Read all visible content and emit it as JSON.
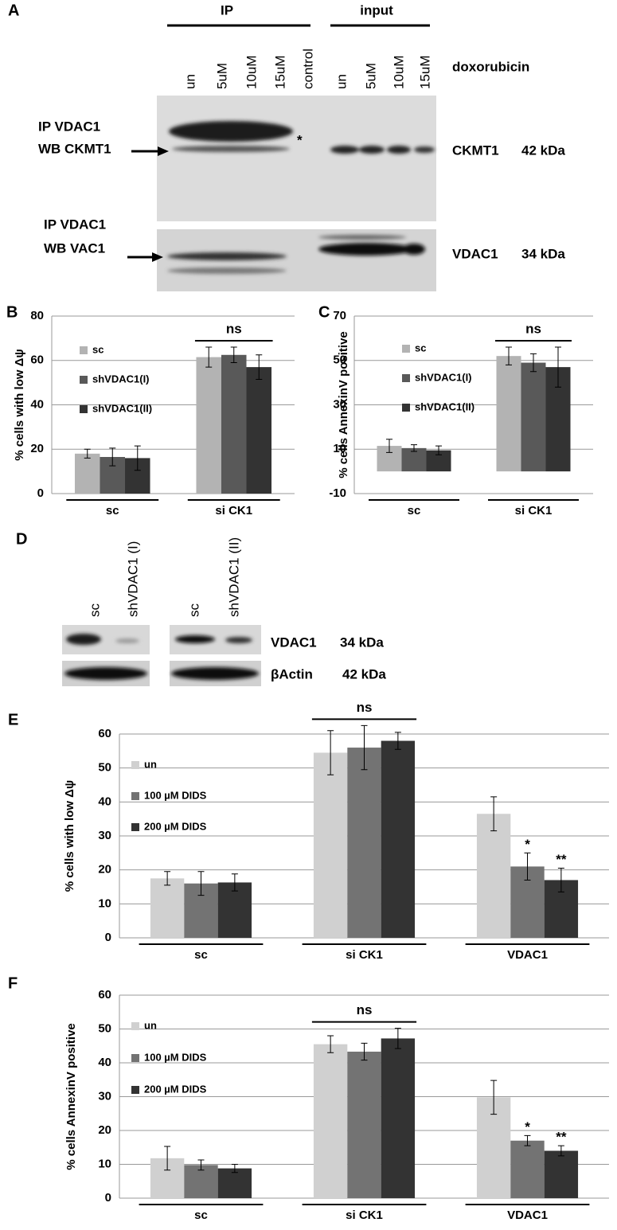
{
  "panel_labels": [
    "A",
    "B",
    "C",
    "D",
    "E",
    "F"
  ],
  "blot_a": {
    "groups": [
      "IP",
      "input"
    ],
    "lanes": [
      "un",
      "5uM",
      "10uM",
      "15uM",
      "control",
      "un",
      "5uM",
      "10uM",
      "15uM"
    ],
    "treatment": "doxorubicin",
    "upper_left": [
      "IP VDAC1",
      "WB CKMT1"
    ],
    "asterisk": "*",
    "upper_right": [
      "CKMT1",
      "42 kDa"
    ],
    "lower_left": [
      "IP VDAC1",
      "WB VAC1"
    ],
    "lower_right": [
      "VDAC1",
      "34 kDa"
    ]
  },
  "blot_d": {
    "lanes": [
      "sc",
      "shVDAC1 (I)",
      "sc",
      "shVDAC1 (II)"
    ],
    "rows": [
      [
        "VDAC1",
        "34 kDa"
      ],
      [
        "βActin",
        "42 kDa"
      ]
    ]
  },
  "chart_data": [
    {
      "type": "bar",
      "y_label": "% cells with low Δψ",
      "categories": [
        "sc",
        "si CK1"
      ],
      "series": [
        {
          "name": "sc",
          "color": "#b3b3b3",
          "values": [
            18,
            61.5
          ],
          "errors": [
            2,
            4.5
          ]
        },
        {
          "name": "shVDAC1(I)",
          "color": "#595959",
          "values": [
            16.5,
            62.5
          ],
          "errors": [
            4,
            3.5
          ]
        },
        {
          "name": "shVDAC1(II)",
          "color": "#333333",
          "values": [
            16,
            57
          ],
          "errors": [
            5.5,
            5.5
          ]
        }
      ],
      "ylim": [
        0,
        80
      ],
      "yticks": [
        0,
        20,
        40,
        60,
        80
      ],
      "grid": true,
      "legend": "upper left",
      "significance": [
        null,
        "ns"
      ]
    },
    {
      "type": "bar",
      "y_label": "% cells AnnexinV positive",
      "categories": [
        "sc",
        "si CK1"
      ],
      "series": [
        {
          "name": "sc",
          "color": "#b3b3b3",
          "values": [
            11.5,
            52
          ],
          "errors": [
            3,
            4
          ]
        },
        {
          "name": "shVDAC1(I)",
          "color": "#595959",
          "values": [
            10.5,
            49
          ],
          "errors": [
            1.5,
            4
          ]
        },
        {
          "name": "shVDAC1(II)",
          "color": "#333333",
          "values": [
            9.5,
            47
          ],
          "errors": [
            2,
            9
          ]
        }
      ],
      "ylim": [
        -10,
        70
      ],
      "yticks": [
        -10,
        10,
        30,
        50,
        70
      ],
      "grid": true,
      "legend": "upper left",
      "significance": [
        null,
        "ns"
      ]
    },
    {
      "type": "bar",
      "y_label": "% cells with low Δψ",
      "categories": [
        "sc",
        "si CK1",
        "VDAC1"
      ],
      "series": [
        {
          "name": "un",
          "color": "#d0d0d0",
          "values": [
            17.5,
            54.5,
            36.5
          ],
          "errors": [
            2,
            6.5,
            5
          ]
        },
        {
          "name": "100 µM DIDS",
          "color": "#737373",
          "values": [
            16,
            56,
            21
          ],
          "errors": [
            3.5,
            6.5,
            4
          ],
          "markers": [
            null,
            null,
            "*"
          ]
        },
        {
          "name": "200 µM DIDS",
          "color": "#333333",
          "values": [
            16.3,
            58,
            17
          ],
          "errors": [
            2.5,
            2.5,
            3.5
          ],
          "markers": [
            null,
            null,
            "**"
          ]
        }
      ],
      "ylim": [
        0,
        60
      ],
      "yticks": [
        0,
        10,
        20,
        30,
        40,
        50,
        60
      ],
      "grid": true,
      "legend": "upper left",
      "significance": [
        null,
        "ns",
        null
      ]
    },
    {
      "type": "bar",
      "y_label": "% cells AnnexinV positive",
      "categories": [
        "sc",
        "si CK1",
        "VDAC1"
      ],
      "series": [
        {
          "name": "un",
          "color": "#d0d0d0",
          "values": [
            11.8,
            45.5,
            29.8
          ],
          "errors": [
            3.5,
            2.5,
            5
          ]
        },
        {
          "name": "100 µM DIDS",
          "color": "#737373",
          "values": [
            9.8,
            43.3,
            17
          ],
          "errors": [
            1.5,
            2.5,
            1.5
          ],
          "markers": [
            null,
            null,
            "*"
          ]
        },
        {
          "name": "200 µM DIDS",
          "color": "#333333",
          "values": [
            8.8,
            47.2,
            14
          ],
          "errors": [
            1.2,
            3,
            1.5
          ],
          "markers": [
            null,
            null,
            "**"
          ]
        }
      ],
      "ylim": [
        0,
        60
      ],
      "yticks": [
        0,
        10,
        20,
        30,
        40,
        50,
        60
      ],
      "grid": true,
      "legend": "upper left",
      "significance": [
        null,
        "ns",
        null
      ]
    }
  ]
}
